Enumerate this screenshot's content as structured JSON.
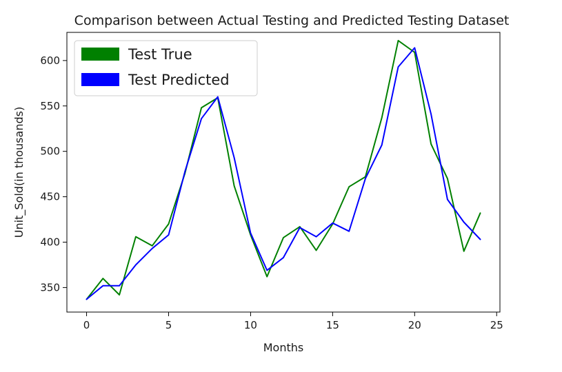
{
  "chart_data": {
    "type": "line",
    "title": "Comparison between Actual Testing and Predicted Testing Dataset",
    "xlabel": "Months",
    "ylabel": "Unit_Sold(in thousands)",
    "xlim": [
      -1.2,
      25.2
    ],
    "ylim": [
      323,
      631
    ],
    "xticks": [
      0,
      5,
      10,
      15,
      20,
      25
    ],
    "yticks": [
      350,
      400,
      450,
      500,
      550,
      600
    ],
    "grid": false,
    "legend_position": "top-left",
    "x": [
      0,
      1,
      2,
      3,
      4,
      5,
      6,
      7,
      8,
      9,
      10,
      11,
      12,
      13,
      14,
      15,
      16,
      17,
      18,
      19,
      20,
      21,
      22,
      23,
      24
    ],
    "series": [
      {
        "name": "Test True",
        "color": "#008000",
        "values": [
          337,
          360,
          342,
          406,
          396,
          420,
          476,
          548,
          559,
          462,
          408,
          362,
          405,
          417,
          391,
          420,
          461,
          472,
          537,
          622,
          609,
          508,
          470,
          390,
          432
        ]
      },
      {
        "name": "Test Predicted",
        "color": "#0000ff",
        "values": [
          337,
          352,
          352,
          375,
          393,
          408,
          478,
          536,
          560,
          493,
          410,
          369,
          383,
          416,
          406,
          421,
          412,
          470,
          507,
          593,
          614,
          541,
          447,
          422,
          403
        ]
      }
    ]
  }
}
